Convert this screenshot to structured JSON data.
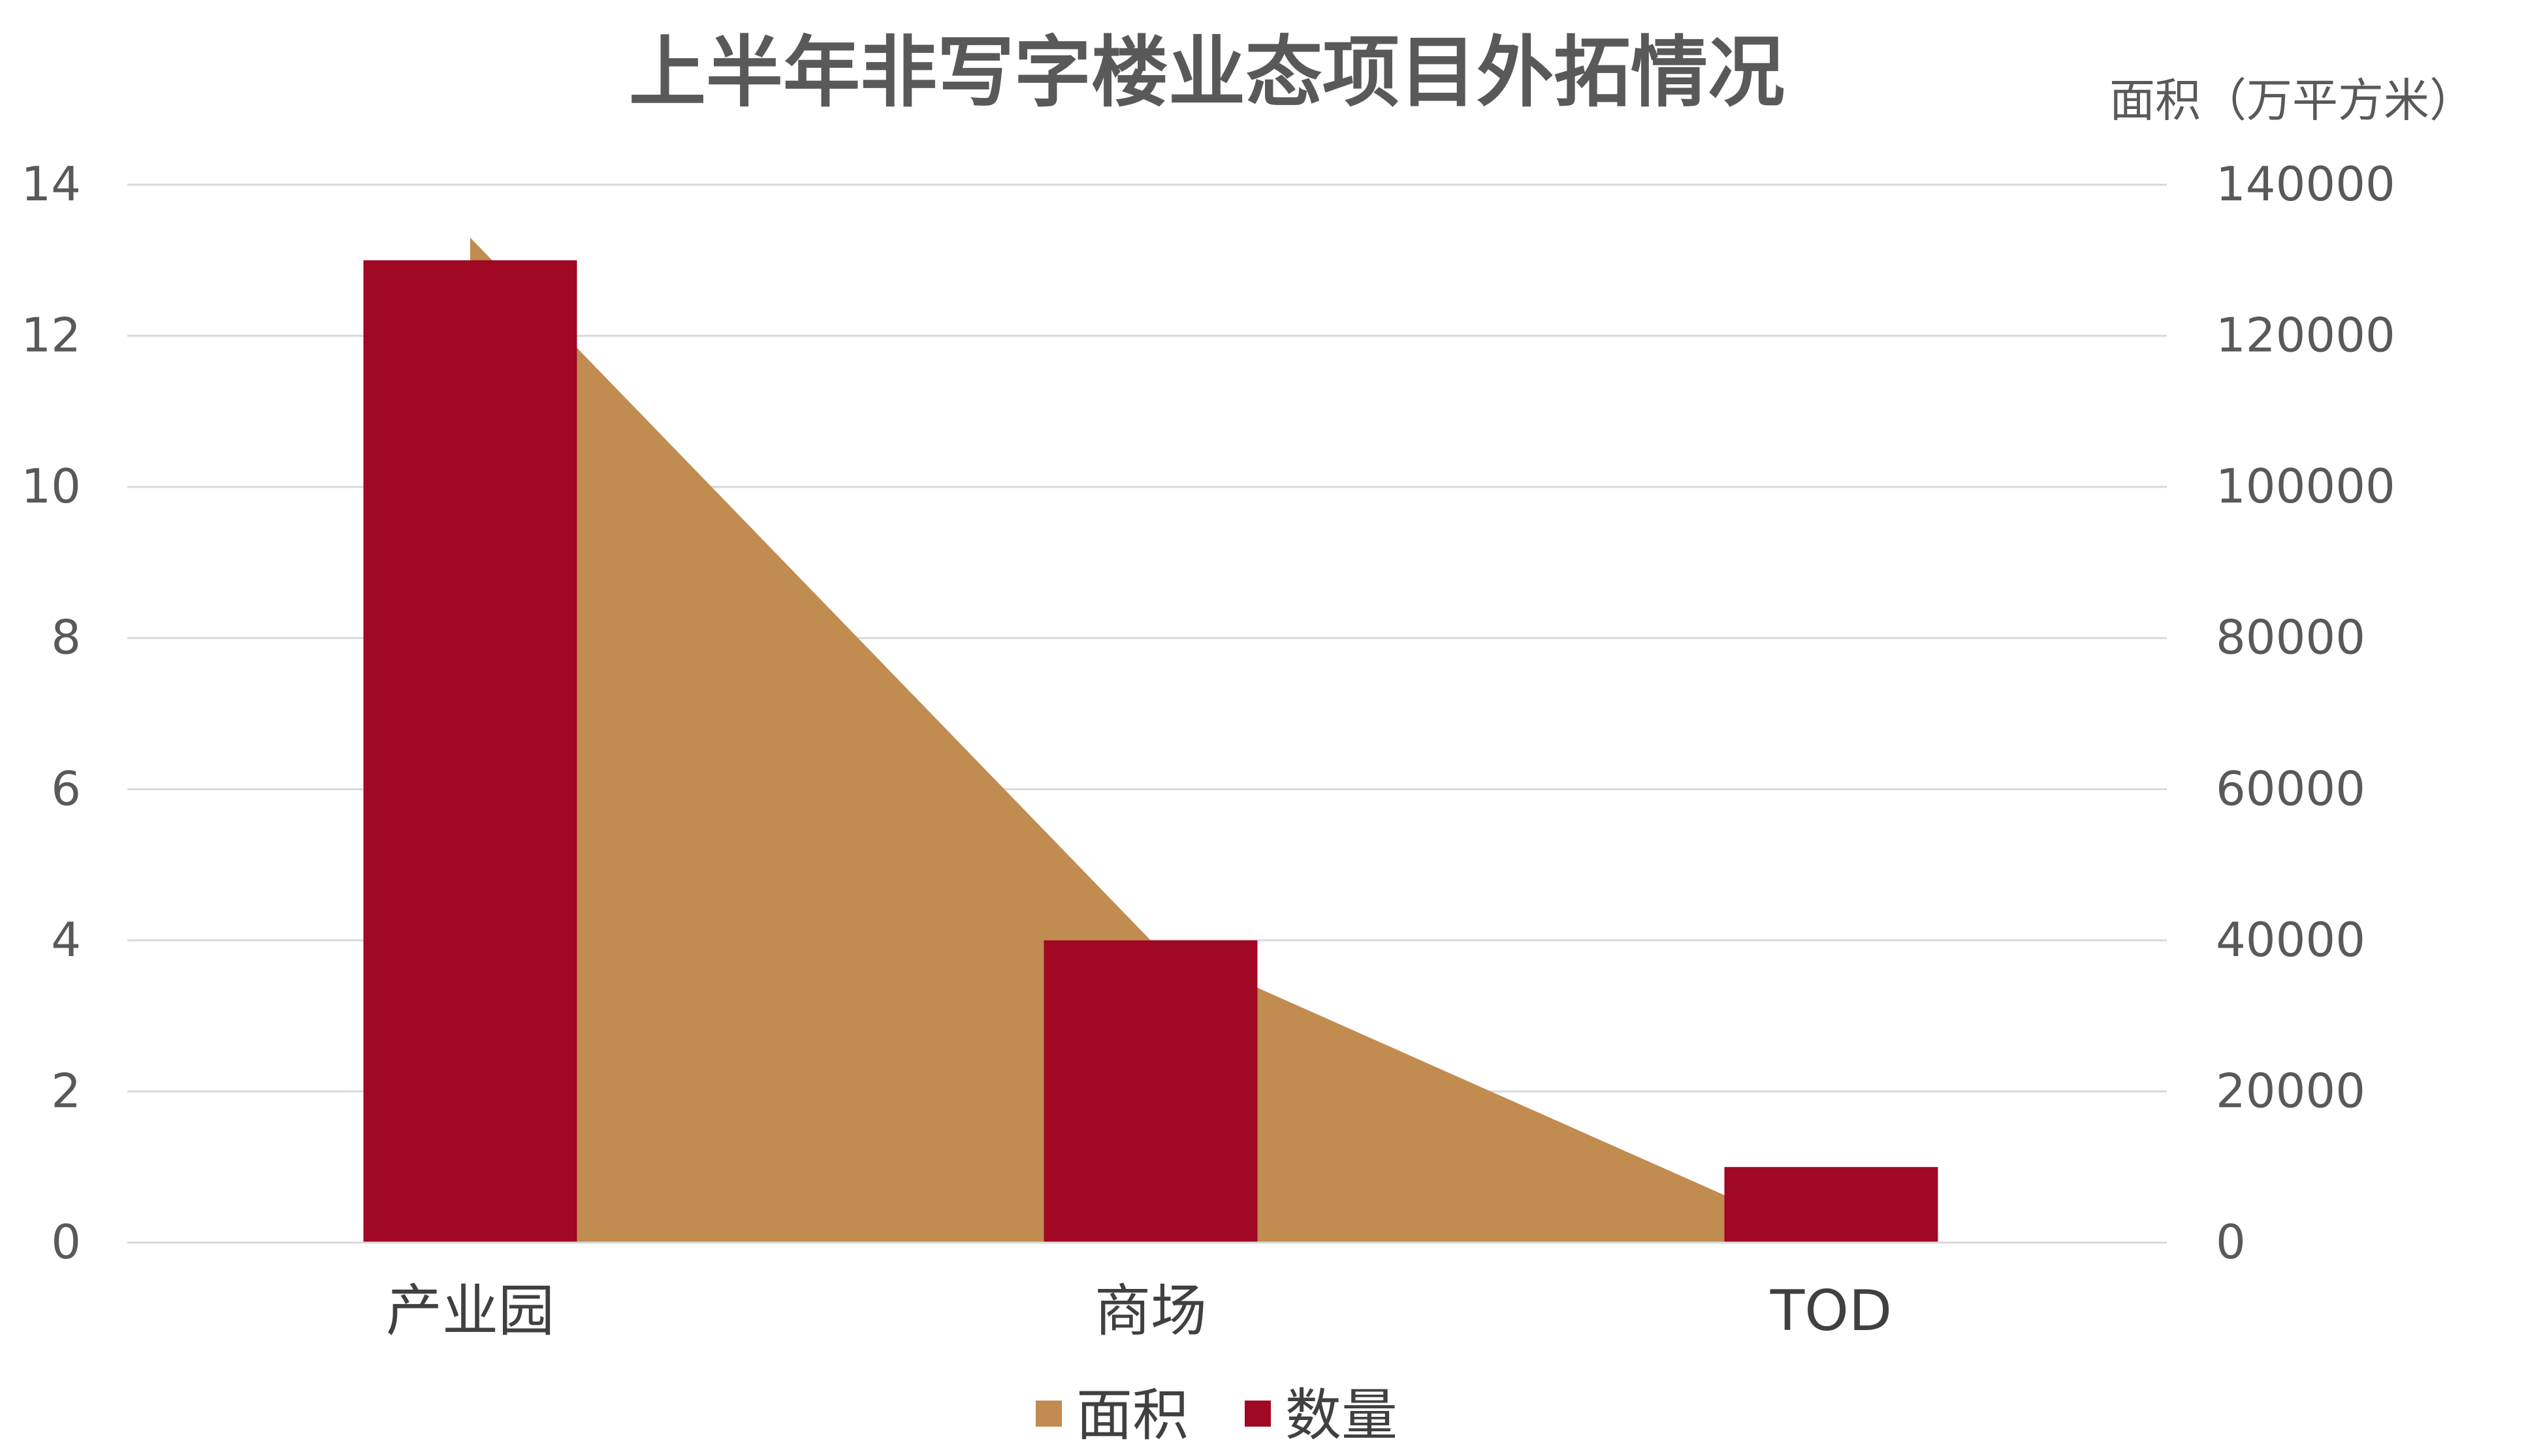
{
  "chart_data": {
    "type": "bar",
    "title": "上半年非写字楼业态项目外拓情况",
    "categories": [
      "产业园",
      "商场",
      "TOD"
    ],
    "series": [
      {
        "name": "面积",
        "type": "area",
        "axis": "right",
        "color": "#C08C50",
        "values": [
          133000,
          40000,
          0
        ]
      },
      {
        "name": "数量",
        "type": "bar",
        "axis": "left",
        "color": "#A00824",
        "values": [
          13,
          4,
          1
        ]
      }
    ],
    "left_axis": {
      "min": 0,
      "max": 14,
      "ticks": [
        "0",
        "2",
        "4",
        "6",
        "8",
        "10",
        "12",
        "14"
      ]
    },
    "right_axis": {
      "label": "面积（万平方米）",
      "min": 0,
      "max": 140000,
      "ticks": [
        "0",
        "20000",
        "40000",
        "60000",
        "80000",
        "100000",
        "120000",
        "140000"
      ]
    },
    "grid": true,
    "legend_position": "bottom"
  }
}
